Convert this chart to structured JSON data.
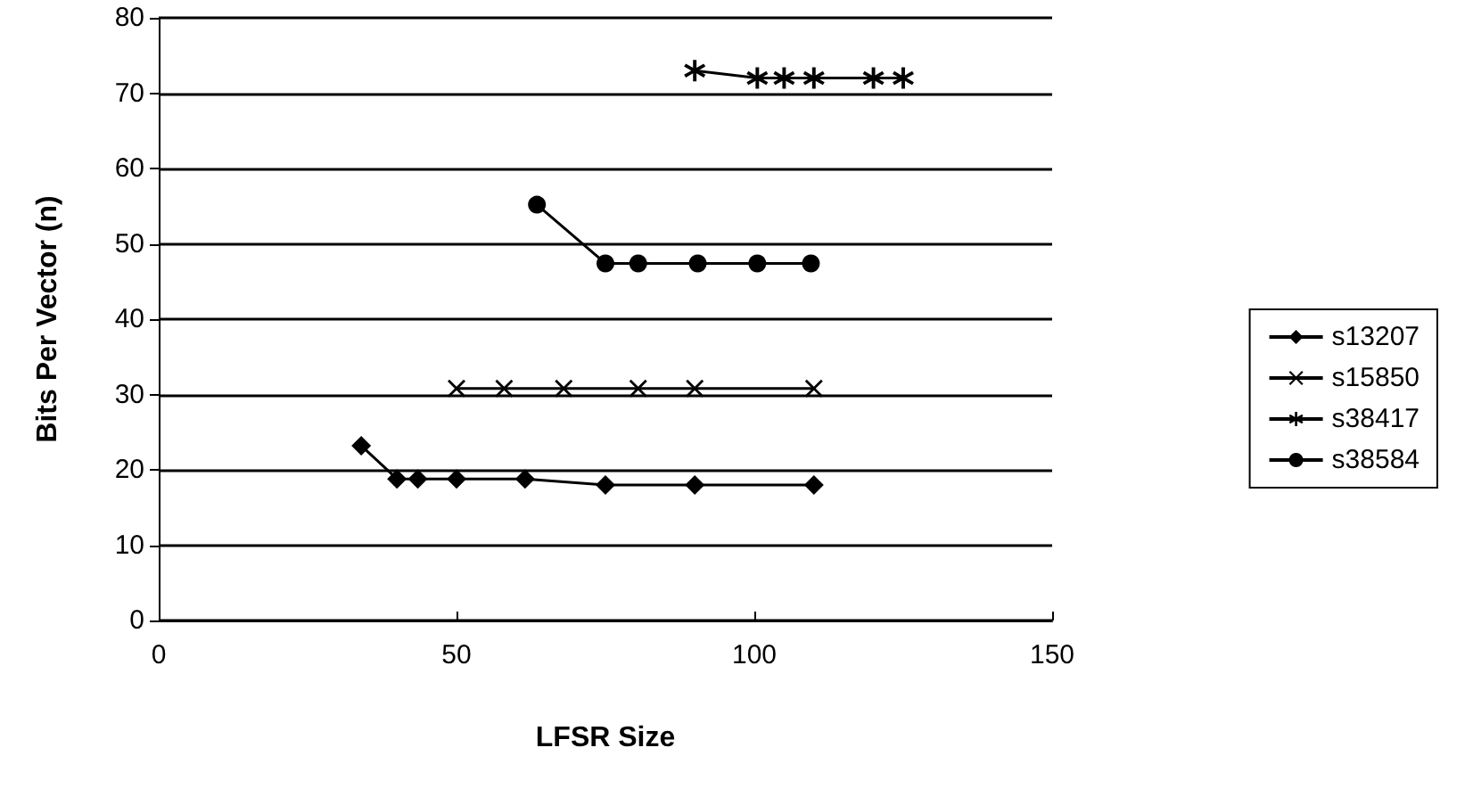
{
  "chart_data": {
    "type": "line",
    "xlabel": "LFSR Size",
    "ylabel": "Bits Per Vector (n)",
    "xlim": [
      0,
      150
    ],
    "xticks": [
      0,
      50,
      100,
      150
    ],
    "ylim": [
      0,
      80
    ],
    "yticks": [
      0,
      10,
      20,
      30,
      40,
      50,
      60,
      70,
      80
    ],
    "grid": "y",
    "legend": "right",
    "series": [
      {
        "name": "s13207",
        "color": "#000000",
        "marker": "diamond",
        "x": [
          34,
          40,
          43.5,
          50,
          61.5,
          75,
          90,
          110
        ],
        "values": [
          23.2,
          18.8,
          18.8,
          18.8,
          18.8,
          18,
          18,
          18
        ]
      },
      {
        "name": "s15850",
        "color": "#000000",
        "marker": "cross",
        "x": [
          50,
          58,
          68,
          80.5,
          90,
          110
        ],
        "values": [
          30.8,
          30.8,
          30.8,
          30.8,
          30.8,
          30.8
        ]
      },
      {
        "name": "s38417",
        "color": "#000000",
        "marker": "star",
        "x": [
          90,
          100.5,
          105,
          110,
          120,
          125
        ],
        "values": [
          73,
          72,
          72,
          72,
          72,
          72
        ]
      },
      {
        "name": "s38584",
        "color": "#000000",
        "marker": "circle",
        "x": [
          63.5,
          75,
          80.5,
          90.5,
          100.5,
          109.5
        ],
        "values": [
          55.2,
          47.4,
          47.4,
          47.4,
          47.4,
          47.4
        ]
      }
    ]
  }
}
